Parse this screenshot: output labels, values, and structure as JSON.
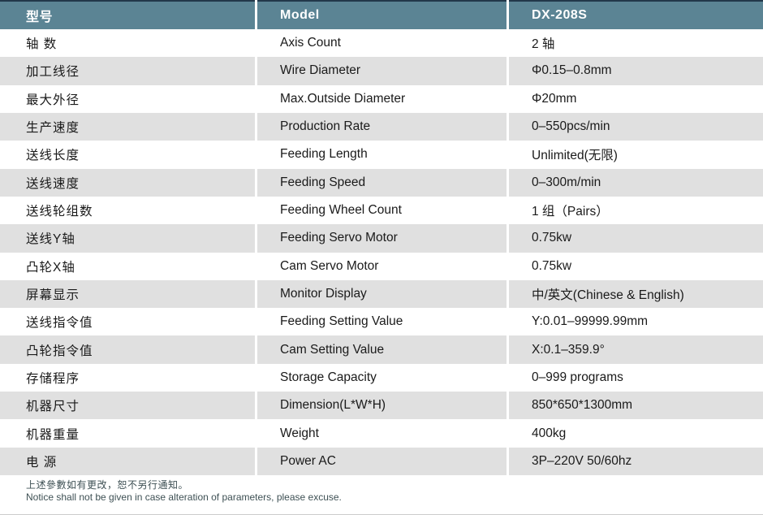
{
  "colors": {
    "header_bg": "#5b8494",
    "header_top_edge": "#22384a",
    "row_alt_bg": "#e0e0e0",
    "row_bg": "#ffffff",
    "footer_text": "#3e5054"
  },
  "table": {
    "header": {
      "cn": "型号",
      "en": "Model",
      "value": "DX-208S"
    },
    "rows": [
      {
        "cn": "轴 数",
        "en": "Axis Count",
        "value": "2 轴"
      },
      {
        "cn": "加工线径",
        "en": "Wire Diameter",
        "value": "Φ0.15–0.8mm"
      },
      {
        "cn": "最大外径",
        "en": "Max.Outside Diameter",
        "value": "Φ20mm"
      },
      {
        "cn": "生产速度",
        "en": "Production Rate",
        "value": "0–550pcs/min"
      },
      {
        "cn": "送线长度",
        "en": "Feeding Length",
        "value": "Unlimited(无限)"
      },
      {
        "cn": "送线速度",
        "en": "Feeding Speed",
        "value": "0–300m/min"
      },
      {
        "cn": "送线轮组数",
        "en": "Feeding Wheel Count",
        "value": "1 组（Pairs）"
      },
      {
        "cn": "送线Y轴",
        "en": "Feeding Servo Motor",
        "value": "0.75kw"
      },
      {
        "cn": "凸轮X轴",
        "en": "Cam Servo Motor",
        "value": "0.75kw"
      },
      {
        "cn": "屏幕显示",
        "en": "Monitor Display",
        "value": "中/英文(Chinese & English)"
      },
      {
        "cn": "送线指令值",
        "en": "Feeding Setting Value",
        "value": "Y:0.01–99999.99mm"
      },
      {
        "cn": "凸轮指令值",
        "en": "Cam Setting Value",
        "value": "X:0.1–359.9°"
      },
      {
        "cn": "存储程序",
        "en": "Storage Capacity",
        "value": "0–999 programs"
      },
      {
        "cn": "机器尺寸",
        "en": "Dimension(L*W*H)",
        "value": "850*650*1300mm"
      },
      {
        "cn": "机器重量",
        "en": "Weight",
        "value": "400kg"
      },
      {
        "cn": "电 源",
        "en": "Power AC",
        "value": "3P–220V 50/60hz"
      }
    ]
  },
  "footer": {
    "note_cn": "上述參數如有更改，恕不另行通知。",
    "note_en": "Notice shall not be given in case alteration of parameters, please excuse."
  }
}
